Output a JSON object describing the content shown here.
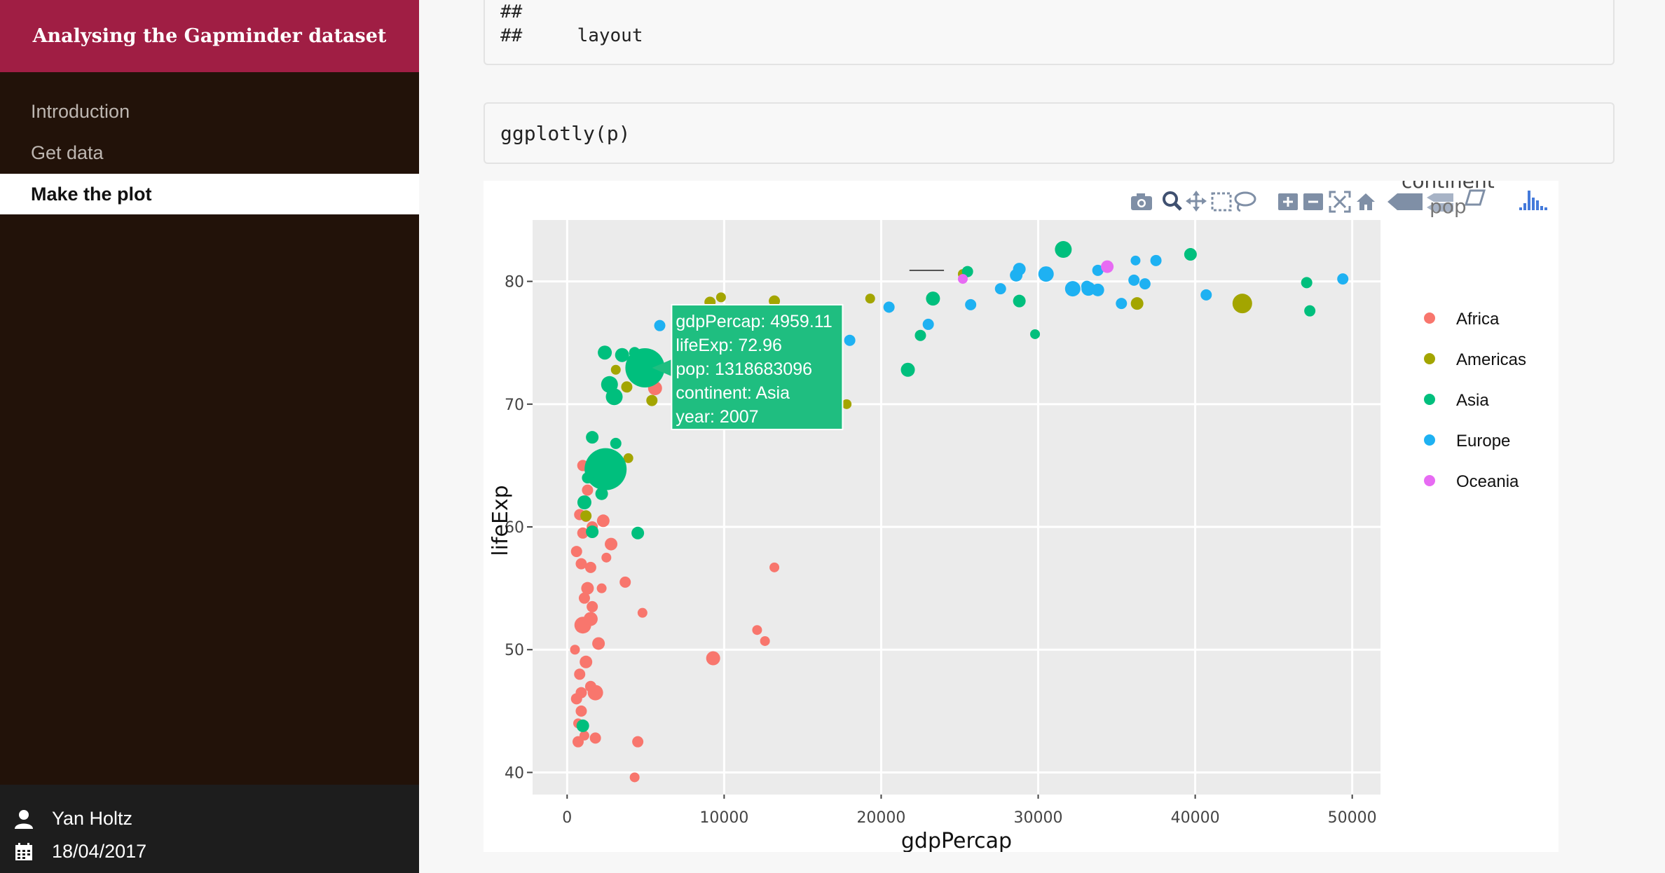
{
  "sidebar": {
    "title": "Analysing the Gapminder dataset",
    "nav": [
      {
        "label": "Introduction",
        "active": false
      },
      {
        "label": "Get data",
        "active": false
      },
      {
        "label": "Make the plot",
        "active": true
      }
    ],
    "author": "Yan Holtz",
    "date": "18/04/2017"
  },
  "main": {
    "output_lines": [
      "##",
      "##     layout"
    ],
    "code": "ggplotly(p)"
  },
  "modebar": {
    "icons": [
      "camera-icon",
      "zoom-icon",
      "pan-icon",
      "box-select-icon",
      "lasso-icon",
      "zoom-in-icon",
      "zoom-out-icon",
      "autoscale-icon",
      "reset-axes-icon",
      "spike-icon",
      "hover-closest-icon",
      "hover-compare-icon",
      "plotly-logo-icon"
    ],
    "color": "#7f8fa6",
    "overlapping_text": [
      "continent",
      "pop"
    ]
  },
  "chart_data": {
    "type": "scatter",
    "xlabel": "gdpPercap",
    "ylabel": "lifeExp",
    "xlim": [
      -2200,
      51800
    ],
    "ylim": [
      38.2,
      85.0
    ],
    "xticks": [
      0,
      10000,
      20000,
      30000,
      40000,
      50000
    ],
    "yticks": [
      40,
      50,
      60,
      70,
      80
    ],
    "background": "#ebebeb",
    "grid": true,
    "legend": {
      "position": "right",
      "title": ""
    },
    "series": [
      {
        "name": "Africa",
        "color": "#f8766d",
        "points": [
          [
            1000,
            52
          ],
          [
            1500,
            52.5
          ],
          [
            2000,
            50.5
          ],
          [
            1200,
            49
          ],
          [
            800,
            48
          ],
          [
            600,
            46
          ],
          [
            1800,
            46.5
          ],
          [
            900,
            45
          ],
          [
            1100,
            43
          ],
          [
            700,
            42.5
          ],
          [
            4500,
            42.5
          ],
          [
            4300,
            39.6
          ],
          [
            1300,
            55
          ],
          [
            2200,
            55
          ],
          [
            3700,
            55.5
          ],
          [
            4800,
            53
          ],
          [
            1600,
            53.5
          ],
          [
            900,
            57
          ],
          [
            1500,
            56.7
          ],
          [
            600,
            58
          ],
          [
            1000,
            59.5
          ],
          [
            1600,
            60
          ],
          [
            2300,
            60.5
          ],
          [
            2800,
            58.6
          ],
          [
            800,
            61
          ],
          [
            1300,
            63
          ],
          [
            1800,
            65
          ],
          [
            1000,
            65
          ],
          [
            1500,
            64
          ],
          [
            13200,
            56.7
          ],
          [
            12100,
            51.6
          ],
          [
            12600,
            50.7
          ],
          [
            9300,
            49.3
          ],
          [
            5600,
            71.3
          ],
          [
            1200,
            60.8
          ],
          [
            500,
            50
          ],
          [
            1100,
            54.2
          ],
          [
            1500,
            47
          ],
          [
            2500,
            57.5
          ],
          [
            700,
            44
          ],
          [
            1800,
            42.8
          ],
          [
            900,
            46.5
          ]
        ],
        "sizes": [
          12,
          10,
          9,
          9,
          8,
          8,
          11,
          8,
          7,
          8,
          8,
          7,
          9,
          7,
          8,
          7,
          8,
          8,
          8,
          8,
          8,
          8,
          9,
          9,
          8,
          8,
          10,
          8,
          8,
          7,
          7,
          7,
          10,
          10,
          7,
          7,
          8,
          8,
          7,
          7,
          8,
          8
        ]
      },
      {
        "name": "Americas",
        "color": "#a3a500",
        "points": [
          [
            9100,
            78.3
          ],
          [
            9800,
            78.7
          ],
          [
            13200,
            78.4
          ],
          [
            19300,
            78.6
          ],
          [
            36300,
            78.2
          ],
          [
            43000,
            78.2
          ],
          [
            25200,
            80.6
          ],
          [
            5400,
            70.3
          ],
          [
            3800,
            71.4
          ],
          [
            4200,
            72.3
          ],
          [
            3100,
            72.8
          ],
          [
            17800,
            70
          ],
          [
            7400,
            73.5
          ],
          [
            11900,
            72.9
          ],
          [
            1200,
            60.9
          ],
          [
            3900,
            65.6
          ],
          [
            8900,
            75.5
          ]
        ],
        "sizes": [
          8,
          7,
          8,
          7,
          9,
          14,
          7,
          8,
          8,
          7,
          7,
          7,
          7,
          7,
          8,
          7,
          7
        ]
      },
      {
        "name": "Asia",
        "color": "#00bf7d",
        "points": [
          [
            4959,
            72.96
          ],
          [
            2450,
            64.7
          ],
          [
            31600,
            82.6
          ],
          [
            39700,
            82.2
          ],
          [
            23300,
            78.6
          ],
          [
            28800,
            78.4
          ],
          [
            21700,
            72.8
          ],
          [
            25500,
            80.8
          ],
          [
            47100,
            79.9
          ],
          [
            47300,
            77.6
          ],
          [
            22500,
            75.6
          ],
          [
            29800,
            75.7
          ],
          [
            2400,
            74.2
          ],
          [
            3500,
            74
          ],
          [
            2700,
            71.6
          ],
          [
            3000,
            70.6
          ],
          [
            1600,
            67.3
          ],
          [
            3100,
            66.8
          ],
          [
            1100,
            62
          ],
          [
            1600,
            59.6
          ],
          [
            4500,
            59.5
          ],
          [
            1300,
            64
          ],
          [
            2200,
            62.7
          ],
          [
            1000,
            43.8
          ],
          [
            4300,
            74.2
          ]
        ],
        "sizes": [
          28,
          30,
          12,
          9,
          10,
          9,
          10,
          8,
          8,
          8,
          8,
          7,
          10,
          10,
          12,
          12,
          9,
          8,
          10,
          9,
          9,
          8,
          9,
          9,
          8
        ]
      },
      {
        "name": "Europe",
        "color": "#1eb1f2",
        "points": [
          [
            5900,
            76.4
          ],
          [
            10500,
            75.7
          ],
          [
            16500,
            74.5
          ],
          [
            18000,
            75.2
          ],
          [
            20500,
            77.9
          ],
          [
            23000,
            76.5
          ],
          [
            25700,
            78.1
          ],
          [
            27600,
            79.4
          ],
          [
            28600,
            80.5
          ],
          [
            28800,
            81
          ],
          [
            30500,
            80.6
          ],
          [
            32200,
            79.4
          ],
          [
            33200,
            79.4
          ],
          [
            33800,
            79.3
          ],
          [
            33800,
            80.9
          ],
          [
            35300,
            78.2
          ],
          [
            36100,
            80.1
          ],
          [
            36200,
            81.7
          ],
          [
            36800,
            79.8
          ],
          [
            37500,
            81.7
          ],
          [
            40700,
            78.9
          ],
          [
            49400,
            80.2
          ],
          [
            33100,
            79.6
          ]
        ],
        "sizes": [
          8,
          8,
          8,
          8,
          8,
          8,
          8,
          8,
          9,
          9,
          11,
          11,
          10,
          9,
          8,
          8,
          8,
          7,
          8,
          8,
          8,
          8,
          8
        ]
      },
      {
        "name": "Oceania",
        "color": "#e76bf3",
        "points": [
          [
            25200,
            80.2
          ],
          [
            34400,
            81.2
          ]
        ],
        "sizes": [
          7,
          9
        ]
      }
    ],
    "tooltip": {
      "lines": [
        "gdpPercap: 4959.11",
        "lifeExp: 72.96",
        "pop: 1318683096",
        "continent: Asia",
        "year: 2007"
      ],
      "color": "#1fbe80",
      "anchor": {
        "x": 4959.11,
        "y": 72.96
      }
    },
    "spike": {
      "x": [
        21800,
        24000
      ],
      "y": 80.9
    }
  }
}
